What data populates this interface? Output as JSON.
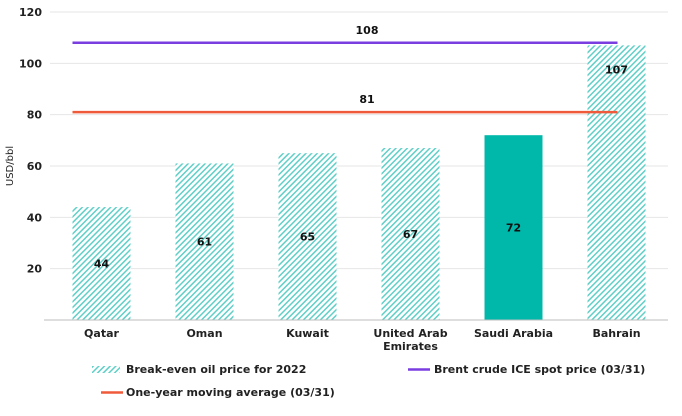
{
  "chart_data": {
    "type": "bar",
    "ylabel": "USD/bbl",
    "ylim": [
      0,
      120
    ],
    "yticks": [
      20,
      40,
      60,
      80,
      100,
      120
    ],
    "grid": true,
    "categories": [
      [
        "Qatar"
      ],
      [
        "Oman"
      ],
      [
        "Kuwait"
      ],
      [
        "United Arab",
        "Emirates"
      ],
      [
        "Saudi Arabia"
      ],
      [
        "Bahrain"
      ]
    ],
    "series": [
      {
        "name": "Break-even oil price for 2022",
        "values": [
          44,
          61,
          65,
          67,
          72,
          107
        ],
        "data_labels": [
          "44",
          "61",
          "65",
          "67",
          "72",
          "107"
        ],
        "highlight_index": 4
      }
    ],
    "reference_lines": [
      {
        "name": "Brent crude ICE spot price (03/31)",
        "value": 108,
        "label": "108"
      },
      {
        "name": "One-year moving average (03/31)",
        "value": 81,
        "label": "81"
      }
    ],
    "colors": {
      "bar_hatch": "#5fcfc7",
      "bar_highlight": "#00b8aa",
      "brent_line": "#7a3de0",
      "moving_avg_line": "#ef5b3a",
      "grid": "#e6e6e6",
      "axis": "#bdbdbd"
    },
    "legend_position": "bottom"
  }
}
